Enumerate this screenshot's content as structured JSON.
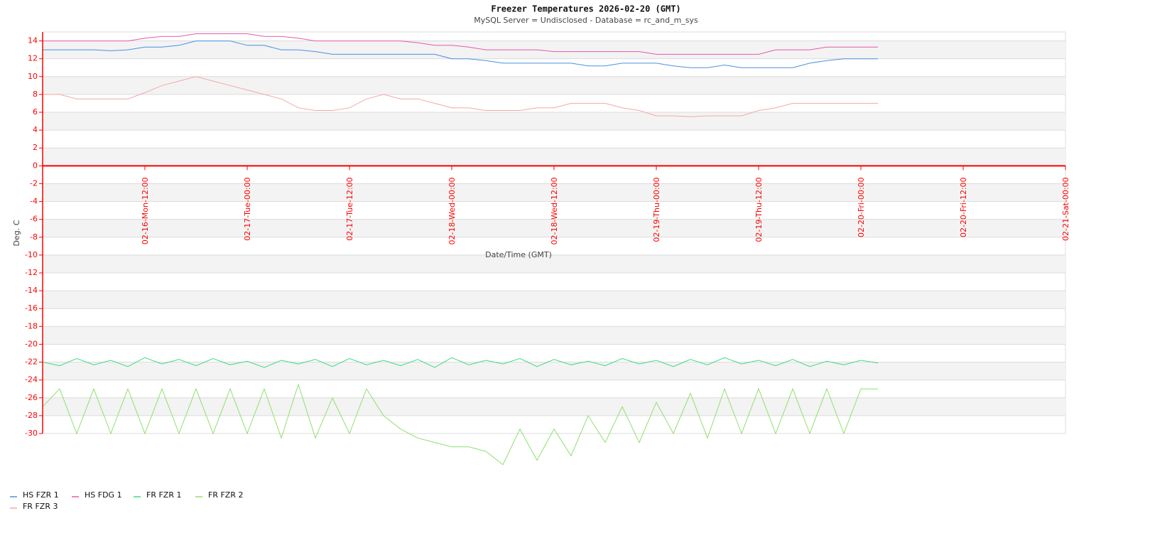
{
  "chart_data": {
    "type": "line",
    "title": "Freezer Temperatures 2026-02-20 (GMT)",
    "subtitle": "MySQL Server = Undisclosed - Database = rc_and_m_sys",
    "x_label": "Date/Time (GMT)",
    "y_label": "Deg. C",
    "axis_color": "#ff0000",
    "grid": "bands",
    "legend": "bottom-left",
    "xlim": [
      "02-16 00:00",
      "02-21 00:00"
    ],
    "xticks": [
      {
        "value": "02-16 12:00",
        "label": "02-16-Mon-12:00"
      },
      {
        "value": "02-17 00:00",
        "label": "02-17-Tue-00:00"
      },
      {
        "value": "02-17 12:00",
        "label": "02-17-Tue-12:00"
      },
      {
        "value": "02-18 00:00",
        "label": "02-18-Wed-00:00"
      },
      {
        "value": "02-18 12:00",
        "label": "02-18-Wed-12:00"
      },
      {
        "value": "02-19 00:00",
        "label": "02-19-Thu-00:00"
      },
      {
        "value": "02-19 12:00",
        "label": "02-19-Thu-12:00"
      },
      {
        "value": "02-20 00:00",
        "label": "02-20-Fri-00:00"
      },
      {
        "value": "02-20 12:00",
        "label": "02-20-Fri-12:00"
      },
      {
        "value": "02-21 00:00",
        "label": "02-21-Sat-00:00"
      }
    ],
    "ylim": [
      -30,
      15
    ],
    "yticks": [
      14,
      12,
      10,
      8,
      6,
      4,
      2,
      0,
      -2,
      -4,
      -6,
      -8,
      -10,
      -12,
      -14,
      -16,
      -18,
      -20,
      -22,
      -24,
      -26,
      -28,
      -30
    ],
    "x": [
      "02-16 00:00",
      "02-16 02:00",
      "02-16 04:00",
      "02-16 06:00",
      "02-16 08:00",
      "02-16 10:00",
      "02-16 12:00",
      "02-16 14:00",
      "02-16 16:00",
      "02-16 18:00",
      "02-16 20:00",
      "02-16 22:00",
      "02-17 00:00",
      "02-17 02:00",
      "02-17 04:00",
      "02-17 06:00",
      "02-17 08:00",
      "02-17 10:00",
      "02-17 12:00",
      "02-17 14:00",
      "02-17 16:00",
      "02-17 18:00",
      "02-17 20:00",
      "02-17 22:00",
      "02-18 00:00",
      "02-18 02:00",
      "02-18 04:00",
      "02-18 06:00",
      "02-18 08:00",
      "02-18 10:00",
      "02-18 12:00",
      "02-18 14:00",
      "02-18 16:00",
      "02-18 18:00",
      "02-18 20:00",
      "02-18 22:00",
      "02-19 00:00",
      "02-19 02:00",
      "02-19 04:00",
      "02-19 06:00",
      "02-19 08:00",
      "02-19 10:00",
      "02-19 12:00",
      "02-19 14:00",
      "02-19 16:00",
      "02-19 18:00",
      "02-19 20:00",
      "02-19 22:00",
      "02-20 00:00",
      "02-20 02:00"
    ],
    "series": [
      {
        "name": "HS FZR 1",
        "color": "#4a90e2",
        "values": [
          13,
          13,
          13,
          13,
          12.9,
          13,
          13.3,
          13.3,
          13.5,
          14,
          14,
          14,
          13.5,
          13.5,
          13,
          13,
          12.8,
          12.5,
          12.5,
          12.5,
          12.5,
          12.5,
          12.5,
          12.5,
          12,
          12,
          11.8,
          11.5,
          11.5,
          11.5,
          11.5,
          11.5,
          11.2,
          11.2,
          11.5,
          11.5,
          11.5,
          11.2,
          11,
          11,
          11.3,
          11,
          11,
          11,
          11,
          11.5,
          11.8,
          12,
          12,
          12
        ]
      },
      {
        "name": "HS FDG 1",
        "color": "#e85aa8",
        "values": [
          14,
          14,
          14,
          14,
          14,
          14,
          14.3,
          14.5,
          14.5,
          14.8,
          14.8,
          14.8,
          14.8,
          14.5,
          14.5,
          14.3,
          14,
          14,
          14,
          14,
          14,
          14,
          13.8,
          13.5,
          13.5,
          13.3,
          13,
          13,
          13,
          13,
          12.8,
          12.8,
          12.8,
          12.8,
          12.8,
          12.8,
          12.5,
          12.5,
          12.5,
          12.5,
          12.5,
          12.5,
          12.5,
          13,
          13,
          13,
          13.3,
          13.3,
          13.3,
          13.3
        ]
      },
      {
        "name": "FR FZR 1",
        "color": "#3ddc84",
        "values": [
          -22,
          -22.4,
          -21.6,
          -22.3,
          -21.8,
          -22.5,
          -21.5,
          -22.2,
          -21.7,
          -22.4,
          -21.6,
          -22.3,
          -21.9,
          -22.6,
          -21.8,
          -22.2,
          -21.7,
          -22.5,
          -21.6,
          -22.3,
          -21.8,
          -22.4,
          -21.7,
          -22.6,
          -21.5,
          -22.3,
          -21.8,
          -22.2,
          -21.6,
          -22.5,
          -21.7,
          -22.3,
          -21.9,
          -22.4,
          -21.6,
          -22.2,
          -21.8,
          -22.5,
          -21.7,
          -22.3,
          -21.5,
          -22.2,
          -21.8,
          -22.4,
          -21.7,
          -22.5,
          -21.9,
          -22.3,
          -21.8,
          -22.1
        ]
      },
      {
        "name": "FR FZR 2",
        "color": "#8ee06e",
        "values": [
          -27,
          -25,
          -30,
          -25,
          -30,
          -25,
          -30,
          -25,
          -30,
          -25,
          -30,
          -25,
          -30,
          -25,
          -30.5,
          -24.5,
          -30.5,
          -26,
          -30,
          -25,
          -28,
          -29.5,
          -30.5,
          -31,
          -31.5,
          -31.5,
          -32,
          -33.5,
          -29.5,
          -33,
          -29.5,
          -32.5,
          -28,
          -31,
          -27,
          -31,
          -26.5,
          -30,
          -25.5,
          -30.5,
          -25,
          -30,
          -25,
          -30,
          -25,
          -30,
          -25,
          -30,
          -25,
          -25
        ]
      },
      {
        "name": "FR FZR 3",
        "color": "#f5a8a8",
        "values": [
          8,
          8,
          7.5,
          7.5,
          7.5,
          7.5,
          8.2,
          9,
          9.5,
          10,
          9.5,
          9,
          8.5,
          8,
          7.5,
          6.5,
          6.2,
          6.2,
          6.5,
          7.5,
          8,
          7.5,
          7.5,
          7,
          6.5,
          6.5,
          6.2,
          6.2,
          6.2,
          6.5,
          6.5,
          7,
          7,
          7,
          6.5,
          6.2,
          5.6,
          5.6,
          5.5,
          5.6,
          5.6,
          5.6,
          6.2,
          6.5,
          7,
          7,
          7,
          7,
          7,
          7
        ]
      }
    ]
  }
}
